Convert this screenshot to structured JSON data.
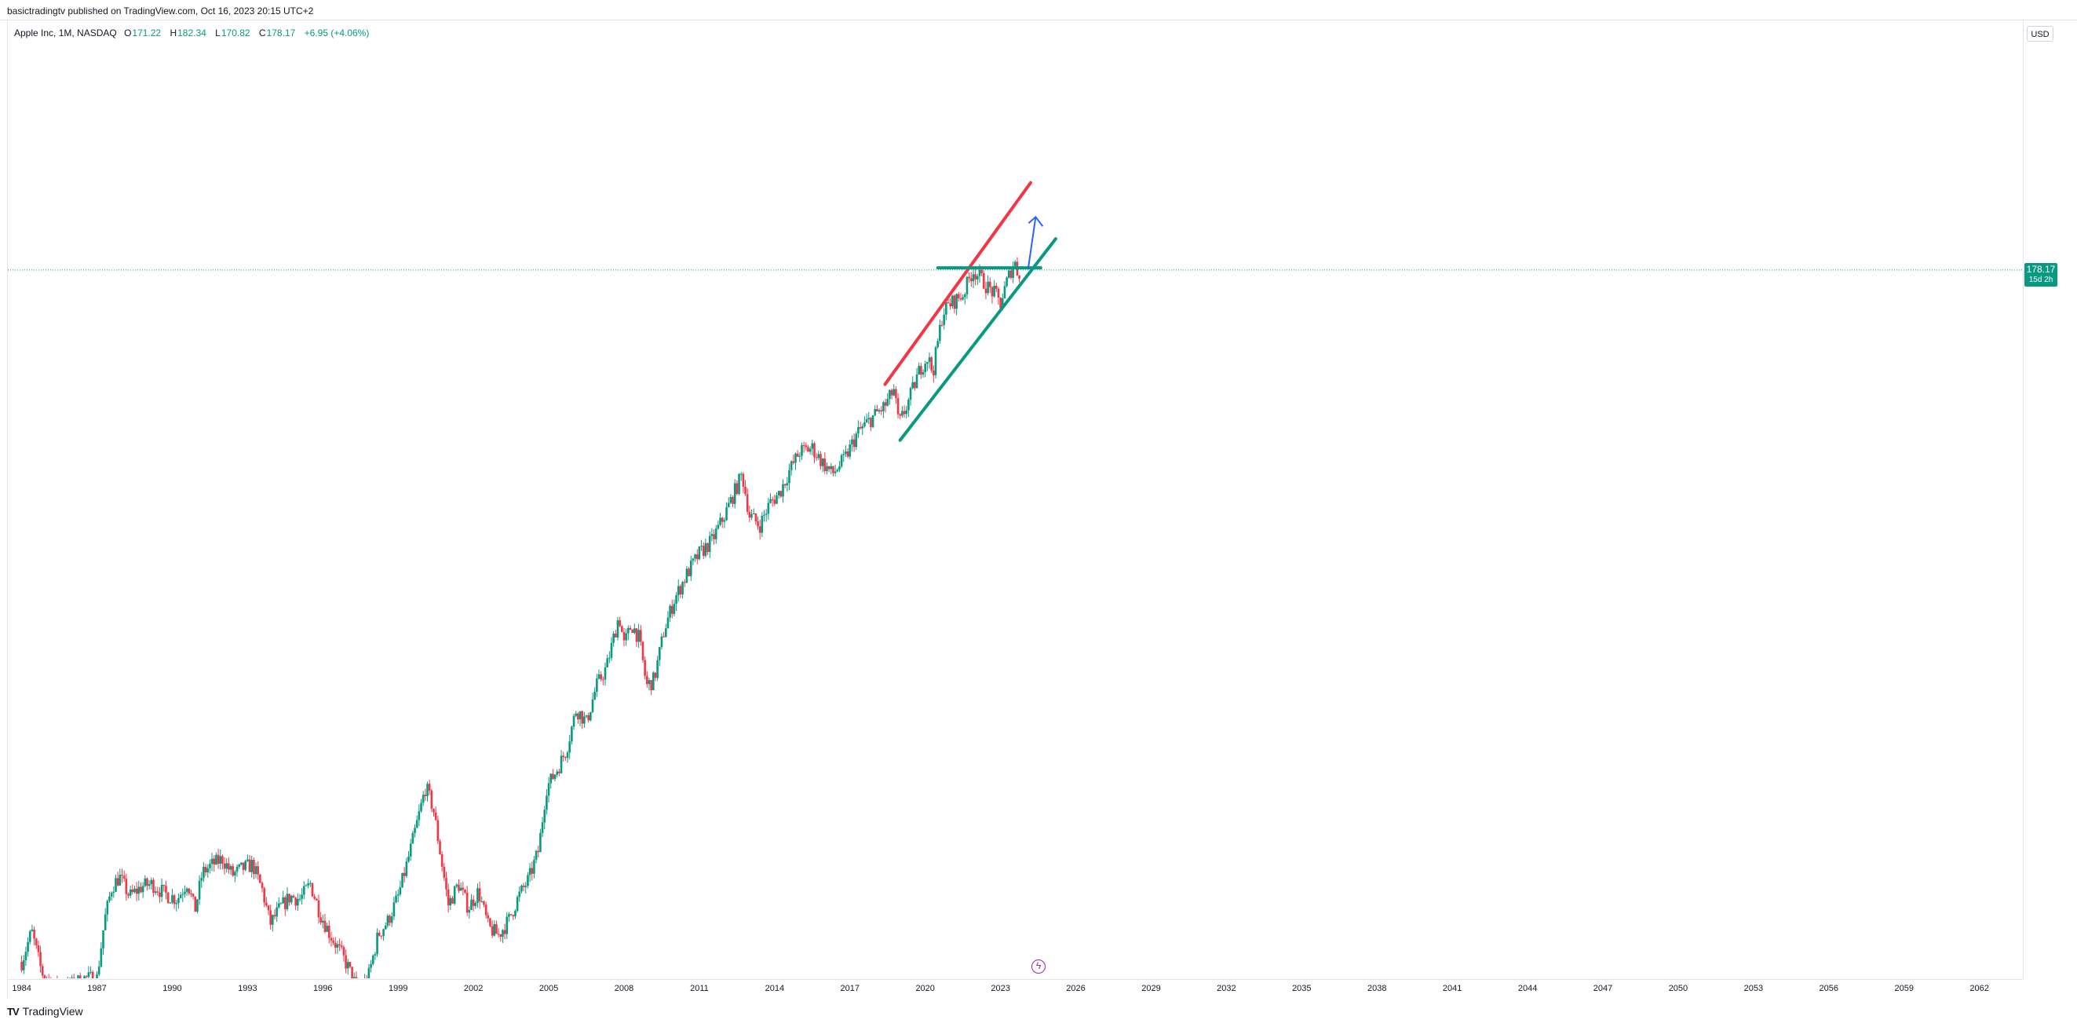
{
  "header": {
    "published_text": "basictradingtv published on TradingView.com, Oct 16, 2023 20:15 UTC+2"
  },
  "legend": {
    "symbol": "Apple Inc, 1M, NASDAQ",
    "open_key": "O",
    "open": "171.22",
    "high_key": "H",
    "high": "182.34",
    "low_key": "L",
    "low": "170.82",
    "close_key": "C",
    "close": "178.17",
    "change": "+6.95 (+4.06%)"
  },
  "price_axis": {
    "currency": "USD",
    "last_price": "178.17",
    "countdown": "15d 2h"
  },
  "footer": {
    "brand": "TradingView"
  },
  "icons": [
    "lightning-event-icon",
    "tradingview-logo-icon"
  ],
  "colors": {
    "up": "#089981",
    "down": "#f23645",
    "red_line": "#f23645",
    "green_line": "#089981",
    "arrow": "#2962ff",
    "price_line": "#089981"
  },
  "chart_data": {
    "type": "candlestick",
    "y_scale": "log",
    "ylim": [
      0.17,
      2050
    ],
    "xlim": [
      1983.45,
      2063.7
    ],
    "y_ticks": [
      "1800.00",
      "1400.00",
      "1080.00",
      "840.00",
      "640.00",
      "500.00",
      "380.00",
      "290.00",
      "220.00",
      "130.00",
      "102.00",
      "78.00",
      "60.00",
      "46.00",
      "36.00",
      "28.00",
      "22.00",
      "17.00",
      "13.00",
      "10.00",
      "7.50",
      "5.90",
      "4.50",
      "3.50",
      "2.70",
      "2.10",
      "1.65",
      "1.30",
      "1.0000",
      "0.7500",
      "0.5900",
      "0.4500",
      "0.3500",
      "0.2700",
      "0.2100"
    ],
    "x_ticks": [
      "1984",
      "1987",
      "1990",
      "1993",
      "1996",
      "1999",
      "2002",
      "2005",
      "2008",
      "2011",
      "2014",
      "2017",
      "2020",
      "2023",
      "2026",
      "2029",
      "2032",
      "2035",
      "2038",
      "2041",
      "2044",
      "2047",
      "2050",
      "2053",
      "2056",
      "2059",
      "2062"
    ],
    "close_path": [
      [
        1984.0,
        0.2
      ],
      [
        1984.4,
        0.27
      ],
      [
        1984.8,
        0.18
      ],
      [
        1985.5,
        0.15
      ],
      [
        1986.5,
        0.17
      ],
      [
        1987.0,
        0.17
      ],
      [
        1987.3,
        0.3
      ],
      [
        1987.6,
        0.42
      ],
      [
        1987.9,
        0.46
      ],
      [
        1988.3,
        0.38
      ],
      [
        1988.8,
        0.42
      ],
      [
        1989.2,
        0.43
      ],
      [
        1989.7,
        0.39
      ],
      [
        1990.2,
        0.37
      ],
      [
        1990.6,
        0.44
      ],
      [
        1990.9,
        0.33
      ],
      [
        1991.2,
        0.48
      ],
      [
        1991.6,
        0.52
      ],
      [
        1992.0,
        0.55
      ],
      [
        1992.4,
        0.47
      ],
      [
        1992.8,
        0.5
      ],
      [
        1993.2,
        0.52
      ],
      [
        1993.6,
        0.4
      ],
      [
        1993.9,
        0.29
      ],
      [
        1994.3,
        0.34
      ],
      [
        1994.7,
        0.38
      ],
      [
        1995.1,
        0.37
      ],
      [
        1995.5,
        0.43
      ],
      [
        1995.9,
        0.32
      ],
      [
        1996.3,
        0.26
      ],
      [
        1996.7,
        0.22
      ],
      [
        1997.0,
        0.19
      ],
      [
        1997.4,
        0.15
      ],
      [
        1997.8,
        0.17
      ],
      [
        1998.2,
        0.26
      ],
      [
        1998.6,
        0.3
      ],
      [
        1999.0,
        0.38
      ],
      [
        1999.4,
        0.55
      ],
      [
        1999.8,
        0.82
      ],
      [
        2000.1,
        1.12
      ],
      [
        2000.4,
        0.9
      ],
      [
        2000.8,
        0.48
      ],
      [
        2001.0,
        0.35
      ],
      [
        2001.4,
        0.43
      ],
      [
        2001.8,
        0.34
      ],
      [
        2002.2,
        0.4
      ],
      [
        2002.6,
        0.28
      ],
      [
        2003.0,
        0.26
      ],
      [
        2003.4,
        0.3
      ],
      [
        2003.8,
        0.38
      ],
      [
        2004.2,
        0.45
      ],
      [
        2004.6,
        0.6
      ],
      [
        2004.9,
        1.1
      ],
      [
        2005.3,
        1.3
      ],
      [
        2005.7,
        1.6
      ],
      [
        2006.1,
        2.4
      ],
      [
        2006.5,
        2.1
      ],
      [
        2006.9,
        3.0
      ],
      [
        2007.3,
        3.6
      ],
      [
        2007.8,
        6.0
      ],
      [
        2008.0,
        4.5
      ],
      [
        2008.3,
        5.5
      ],
      [
        2008.6,
        4.8
      ],
      [
        2008.9,
        3.0
      ],
      [
        2009.2,
        3.2
      ],
      [
        2009.6,
        5.2
      ],
      [
        2010.0,
        7.0
      ],
      [
        2010.5,
        9.0
      ],
      [
        2011.0,
        11.0
      ],
      [
        2011.5,
        12.5
      ],
      [
        2012.0,
        16.0
      ],
      [
        2012.7,
        24.0
      ],
      [
        2013.0,
        16.0
      ],
      [
        2013.4,
        14.5
      ],
      [
        2013.8,
        18.0
      ],
      [
        2014.2,
        20.0
      ],
      [
        2014.6,
        25.0
      ],
      [
        2015.0,
        30.0
      ],
      [
        2015.5,
        31.0
      ],
      [
        2015.9,
        27.0
      ],
      [
        2016.3,
        24.0
      ],
      [
        2016.8,
        28.0
      ],
      [
        2017.3,
        36.0
      ],
      [
        2017.9,
        42.0
      ],
      [
        2018.4,
        47.0
      ],
      [
        2018.75,
        55.0
      ],
      [
        2018.95,
        39.0
      ],
      [
        2019.3,
        48.0
      ],
      [
        2019.8,
        68.0
      ],
      [
        2020.1,
        76.0
      ],
      [
        2020.3,
        65.0
      ],
      [
        2020.7,
        118.0
      ],
      [
        2021.0,
        128.0
      ],
      [
        2021.5,
        140.0
      ],
      [
        2021.9,
        178.0
      ],
      [
        2022.2,
        165.0
      ],
      [
        2022.5,
        150.0
      ],
      [
        2022.8,
        140.0
      ],
      [
        2023.0,
        128.0
      ],
      [
        2023.3,
        165.0
      ],
      [
        2023.55,
        195.0
      ],
      [
        2023.7,
        171.0
      ],
      [
        2023.8,
        178.17
      ]
    ],
    "drawings": {
      "red_channel_line": [
        [
          2018.4,
          58
        ],
        [
          2024.2,
          420
        ]
      ],
      "green_trend_line": [
        [
          2019.0,
          33.5
        ],
        [
          2025.2,
          242
        ]
      ],
      "horizontal_level": [
        [
          2020.5,
          182
        ],
        [
          2024.6,
          182
        ]
      ],
      "blue_arrow": [
        [
          2024.1,
          180
        ],
        [
          2024.4,
          300
        ]
      ],
      "last_price": 178.17
    }
  }
}
